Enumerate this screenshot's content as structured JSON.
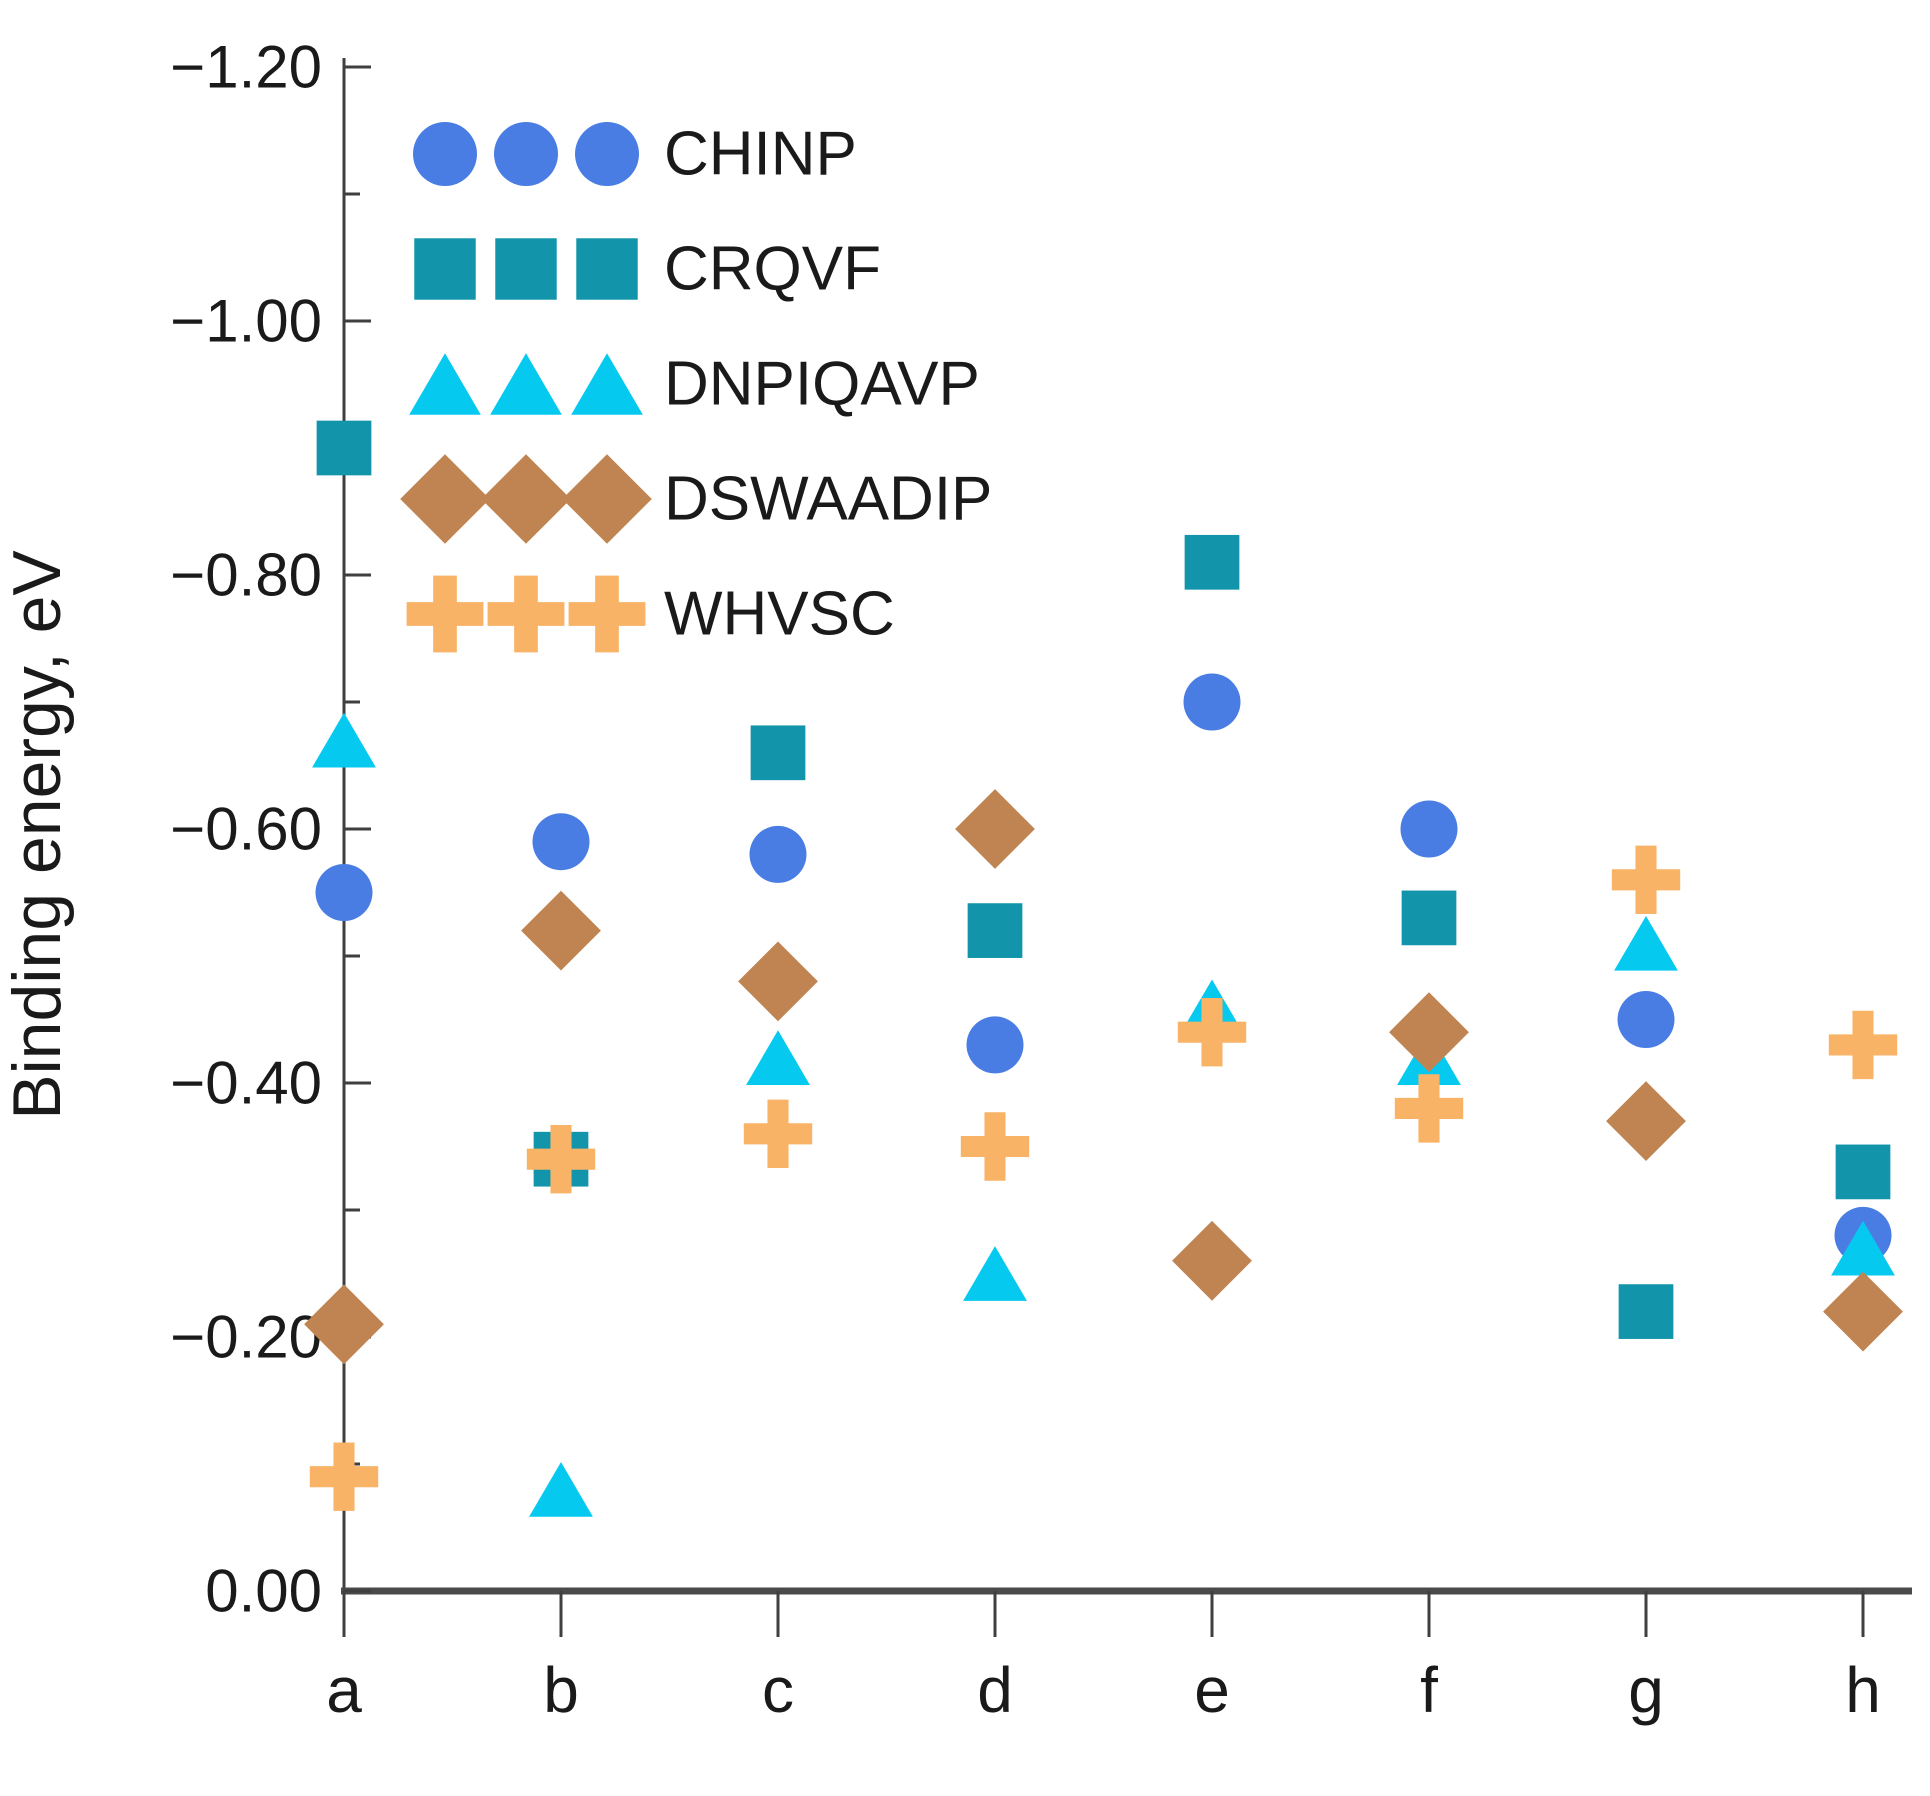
{
  "figure": {
    "background": "#ffffff",
    "axis_color": "#3f3f3f",
    "text_color": "#1a1a1a"
  },
  "chart_data": {
    "type": "scatter",
    "title": "",
    "xlabel": "",
    "ylabel": "Binding energy, eV",
    "categories": [
      "a",
      "b",
      "c",
      "d",
      "e",
      "f",
      "g",
      "h"
    ],
    "grid": false,
    "legend_position": "top-left-inside",
    "y_axis": {
      "unit": "eV",
      "ylim": [
        -1.2,
        0.0
      ],
      "inverted_axis": true,
      "major_tick_values": [
        0.0,
        -0.2,
        -0.4,
        -0.6,
        -0.8,
        -1.0,
        -1.2
      ],
      "major_tick_labels": [
        "0.00",
        "−0.20",
        "−0.40",
        "−0.60",
        "−0.80",
        "−1.00",
        "−1.20"
      ],
      "minor_tick_values": [
        -0.1,
        -0.3,
        -0.5,
        -0.7,
        -0.9,
        -1.1
      ]
    },
    "series": [
      {
        "name": "CHINP",
        "marker": "circle",
        "color": "#4A7DE4",
        "values": [
          -0.55,
          -0.59,
          -0.58,
          -0.43,
          -0.7,
          -0.6,
          -0.45,
          -0.28
        ]
      },
      {
        "name": "CRQVF",
        "marker": "square",
        "color": "#1295AB",
        "values": [
          -0.9,
          -0.34,
          -0.66,
          -0.52,
          -0.81,
          -0.53,
          -0.22,
          -0.33
        ]
      },
      {
        "name": "DNPIQAVP",
        "marker": "triangle",
        "color": "#06C9F0",
        "values": [
          -0.67,
          -0.08,
          -0.42,
          -0.25,
          -0.46,
          -0.42,
          -0.51,
          -0.27
        ]
      },
      {
        "name": "DSWAADIP",
        "marker": "diamond",
        "color": "#BF8451",
        "values": [
          -0.21,
          -0.52,
          -0.48,
          -0.6,
          -0.26,
          -0.44,
          -0.37,
          -0.22
        ]
      },
      {
        "name": "WHVSC",
        "marker": "plus",
        "color": "#F8B366",
        "values": [
          -0.09,
          -0.34,
          -0.36,
          -0.35,
          -0.44,
          -0.38,
          -0.56,
          -0.43
        ]
      }
    ]
  }
}
